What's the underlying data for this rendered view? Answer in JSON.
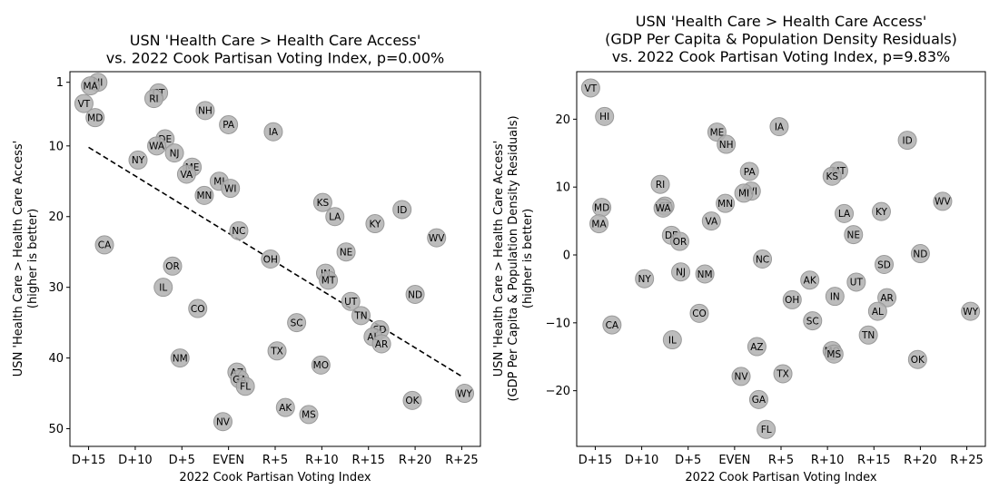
{
  "chart_data": [
    {
      "type": "scatter",
      "title_lines": [
        "USN 'Health Care > Health Care Access'",
        "vs. 2022 Cook Partisan Voting Index, p=0.00%"
      ],
      "xlabel": "2022 Cook Partisan Voting Index",
      "ylabel_lines": [
        "USN 'Health Care > Health Care Access'",
        "(higher is better)"
      ],
      "xlim": [
        -17,
        27
      ],
      "ylim": [
        52.5,
        -0.5
      ],
      "y_inverted": true,
      "xticks": [
        {
          "value": -15,
          "label": "D+15"
        },
        {
          "value": -10,
          "label": "D+10"
        },
        {
          "value": -5,
          "label": "D+5"
        },
        {
          "value": 0,
          "label": "EVEN"
        },
        {
          "value": 5,
          "label": "R+5"
        },
        {
          "value": 10,
          "label": "R+10"
        },
        {
          "value": 15,
          "label": "R+15"
        },
        {
          "value": 20,
          "label": "R+20"
        },
        {
          "value": 25,
          "label": "R+25"
        }
      ],
      "yticks": [
        {
          "value": 1,
          "label": "1"
        },
        {
          "value": 10,
          "label": "10"
        },
        {
          "value": 20,
          "label": "20"
        },
        {
          "value": 30,
          "label": "30"
        },
        {
          "value": 40,
          "label": "40"
        },
        {
          "value": 50,
          "label": "50"
        }
      ],
      "trendline": {
        "x1": -15,
        "y1": 10.2,
        "x2": 25,
        "y2": 42.6
      },
      "marker_color": "#b0b0b0",
      "marker_edge": "#999999",
      "points": [
        {
          "label": "HI",
          "x": -14,
          "y": 1
        },
        {
          "label": "MA",
          "x": -14.8,
          "y": 1.5
        },
        {
          "label": "CT",
          "x": -7.5,
          "y": 2.5
        },
        {
          "label": "RI",
          "x": -8,
          "y": 3.3
        },
        {
          "label": "VT",
          "x": -15.5,
          "y": 4
        },
        {
          "label": "NH",
          "x": -2.5,
          "y": 5
        },
        {
          "label": "MD",
          "x": -14.3,
          "y": 6
        },
        {
          "label": "PA",
          "x": 0,
          "y": 7
        },
        {
          "label": "IA",
          "x": 4.8,
          "y": 8
        },
        {
          "label": "DE",
          "x": -6.8,
          "y": 9
        },
        {
          "label": "WA",
          "x": -7.7,
          "y": 10
        },
        {
          "label": "NJ",
          "x": -5.8,
          "y": 11
        },
        {
          "label": "NY",
          "x": -9.7,
          "y": 12
        },
        {
          "label": "ME",
          "x": -3.9,
          "y": 13
        },
        {
          "label": "VA",
          "x": -4.5,
          "y": 14
        },
        {
          "label": "MI",
          "x": -1,
          "y": 15
        },
        {
          "label": "WI",
          "x": 0.2,
          "y": 16
        },
        {
          "label": "MN",
          "x": -2.6,
          "y": 17
        },
        {
          "label": "KS",
          "x": 10.1,
          "y": 18
        },
        {
          "label": "ID",
          "x": 18.6,
          "y": 19
        },
        {
          "label": "LA",
          "x": 11.4,
          "y": 20
        },
        {
          "label": "KY",
          "x": 15.7,
          "y": 21
        },
        {
          "label": "NC",
          "x": 1.1,
          "y": 22
        },
        {
          "label": "WV",
          "x": 22.3,
          "y": 23
        },
        {
          "label": "CA",
          "x": -13.3,
          "y": 24
        },
        {
          "label": "NE",
          "x": 12.6,
          "y": 25
        },
        {
          "label": "OH",
          "x": 4.5,
          "y": 26
        },
        {
          "label": "OR",
          "x": -6,
          "y": 27
        },
        {
          "label": "IN",
          "x": 10.4,
          "y": 28
        },
        {
          "label": "MT",
          "x": 10.7,
          "y": 29
        },
        {
          "label": "IL",
          "x": -7,
          "y": 30
        },
        {
          "label": "ND",
          "x": 20,
          "y": 31
        },
        {
          "label": "UT",
          "x": 13.1,
          "y": 32
        },
        {
          "label": "CO",
          "x": -3.3,
          "y": 33
        },
        {
          "label": "TN",
          "x": 14.2,
          "y": 34
        },
        {
          "label": "SC",
          "x": 7.3,
          "y": 35
        },
        {
          "label": "SD",
          "x": 16.2,
          "y": 36
        },
        {
          "label": "AL",
          "x": 15.5,
          "y": 37
        },
        {
          "label": "AR",
          "x": 16.4,
          "y": 38
        },
        {
          "label": "TX",
          "x": 5.2,
          "y": 39
        },
        {
          "label": "NM",
          "x": -5.2,
          "y": 40
        },
        {
          "label": "MO",
          "x": 9.9,
          "y": 41
        },
        {
          "label": "AZ",
          "x": 0.9,
          "y": 42
        },
        {
          "label": "GA",
          "x": 1.2,
          "y": 43
        },
        {
          "label": "FL",
          "x": 1.8,
          "y": 44
        },
        {
          "label": "WY",
          "x": 25.3,
          "y": 45
        },
        {
          "label": "OK",
          "x": 19.7,
          "y": 46
        },
        {
          "label": "AK",
          "x": 6.1,
          "y": 47
        },
        {
          "label": "MS",
          "x": 8.6,
          "y": 48
        },
        {
          "label": "NV",
          "x": -0.6,
          "y": 49
        }
      ]
    },
    {
      "type": "scatter",
      "title_lines": [
        "USN 'Health Care > Health Care Access'",
        "(GDP Per Capita & Population Density Residuals)",
        "vs. 2022 Cook Partisan Voting Index, p=9.83%"
      ],
      "xlabel": "2022 Cook Partisan Voting Index",
      "ylabel_lines": [
        "USN 'Health Care > Health Care Access'",
        "(GDP Per Capita & Population Density Residuals)",
        "(higher is better)"
      ],
      "xlim": [
        -17,
        27
      ],
      "ylim": [
        -28.2,
        27
      ],
      "y_inverted": false,
      "xticks": [
        {
          "value": -15,
          "label": "D+15"
        },
        {
          "value": -10,
          "label": "D+10"
        },
        {
          "value": -5,
          "label": "D+5"
        },
        {
          "value": 0,
          "label": "EVEN"
        },
        {
          "value": 5,
          "label": "R+5"
        },
        {
          "value": 10,
          "label": "R+10"
        },
        {
          "value": 15,
          "label": "R+15"
        },
        {
          "value": 20,
          "label": "R+20"
        },
        {
          "value": 25,
          "label": "R+25"
        }
      ],
      "yticks": [
        {
          "value": -20,
          "label": "−20"
        },
        {
          "value": -10,
          "label": "−10"
        },
        {
          "value": 0,
          "label": "0"
        },
        {
          "value": 10,
          "label": "10"
        },
        {
          "value": 20,
          "label": "20"
        }
      ],
      "marker_color": "#b0b0b0",
      "marker_edge": "#999999",
      "points": [
        {
          "label": "VT",
          "x": -15.5,
          "y": 24.6
        },
        {
          "label": "HI",
          "x": -14,
          "y": 20.4
        },
        {
          "label": "IA",
          "x": 4.8,
          "y": 18.9
        },
        {
          "label": "ME",
          "x": -1.9,
          "y": 18.1
        },
        {
          "label": "ID",
          "x": 18.6,
          "y": 16.9
        },
        {
          "label": "NH",
          "x": -0.9,
          "y": 16.3
        },
        {
          "label": "MT",
          "x": 11.2,
          "y": 12.4
        },
        {
          "label": "PA",
          "x": 1.6,
          "y": 12.3
        },
        {
          "label": "KS",
          "x": 10.5,
          "y": 11.6
        },
        {
          "label": "RI",
          "x": -8,
          "y": 10.4
        },
        {
          "label": "WI",
          "x": 1.8,
          "y": 9.4
        },
        {
          "label": "MI",
          "x": 1,
          "y": 9.1
        },
        {
          "label": "WV",
          "x": 22.4,
          "y": 7.9
        },
        {
          "label": "MN",
          "x": -1,
          "y": 7.6
        },
        {
          "label": "CT",
          "x": -7.5,
          "y": 7.2
        },
        {
          "label": "MD",
          "x": -14.3,
          "y": 7.0
        },
        {
          "label": "WA",
          "x": -7.7,
          "y": 6.9
        },
        {
          "label": "KY",
          "x": 15.8,
          "y": 6.4
        },
        {
          "label": "LA",
          "x": 11.8,
          "y": 6.1
        },
        {
          "label": "VA",
          "x": -2.5,
          "y": 5.0
        },
        {
          "label": "MA",
          "x": -14.6,
          "y": 4.6
        },
        {
          "label": "NE",
          "x": 12.8,
          "y": 3.0
        },
        {
          "label": "DE",
          "x": -6.8,
          "y": 2.9
        },
        {
          "label": "OR",
          "x": -5.9,
          "y": 2.0
        },
        {
          "label": "ND",
          "x": 20,
          "y": 0.2
        },
        {
          "label": "NC",
          "x": 3,
          "y": -0.6
        },
        {
          "label": "SD",
          "x": 16.1,
          "y": -1.4
        },
        {
          "label": "NJ",
          "x": -5.8,
          "y": -2.5
        },
        {
          "label": "NM",
          "x": -3.2,
          "y": -2.8
        },
        {
          "label": "NY",
          "x": -9.7,
          "y": -3.5
        },
        {
          "label": "AK",
          "x": 8.1,
          "y": -3.7
        },
        {
          "label": "UT",
          "x": 13.1,
          "y": -4.0
        },
        {
          "label": "IN",
          "x": 10.8,
          "y": -6.1
        },
        {
          "label": "AR",
          "x": 16.4,
          "y": -6.3
        },
        {
          "label": "OH",
          "x": 6.2,
          "y": -6.6
        },
        {
          "label": "AL",
          "x": 15.4,
          "y": -8.3
        },
        {
          "label": "WY",
          "x": 25.4,
          "y": -8.3
        },
        {
          "label": "CO",
          "x": -3.8,
          "y": -8.6
        },
        {
          "label": "SC",
          "x": 8.4,
          "y": -9.7
        },
        {
          "label": "CA",
          "x": -13.2,
          "y": -10.3
        },
        {
          "label": "TN",
          "x": 14.4,
          "y": -11.8
        },
        {
          "label": "IL",
          "x": -6.7,
          "y": -12.5
        },
        {
          "label": "AZ",
          "x": 2.4,
          "y": -13.5
        },
        {
          "label": "MO",
          "x": 10.5,
          "y": -14.1
        },
        {
          "label": "MS",
          "x": 10.7,
          "y": -14.6
        },
        {
          "label": "OK",
          "x": 19.7,
          "y": -15.4
        },
        {
          "label": "TX",
          "x": 5.2,
          "y": -17.5
        },
        {
          "label": "NV",
          "x": 0.7,
          "y": -17.9
        },
        {
          "label": "GA",
          "x": 2.6,
          "y": -21.3
        },
        {
          "label": "FL",
          "x": 3.4,
          "y": -25.7
        }
      ]
    }
  ]
}
